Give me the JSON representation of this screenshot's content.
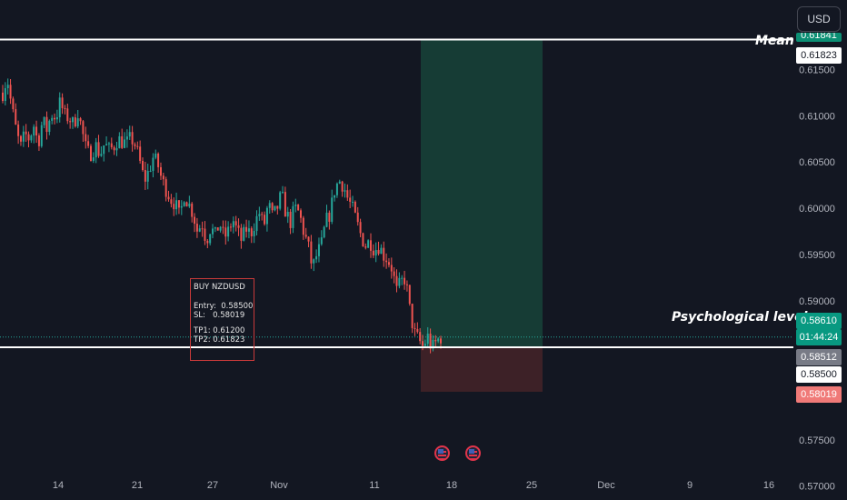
{
  "header": {
    "currency_label": "USD"
  },
  "note": {
    "title": "BUY NZDUSD",
    "entry": "Entry:  0.58500",
    "sl": "SL:   0.58019",
    "tp1": "TP1: 0.61200",
    "tp2": "TP2: 0.61823"
  },
  "levels": {
    "mean_label": "Mean",
    "psych_label": "Psychological level"
  },
  "price_tags": {
    "top_partial": "0.61841",
    "mean": "0.61823",
    "current": "0.58610",
    "countdown": "01:44:24",
    "gray": "0.58512",
    "entry": "0.58500",
    "sl": "0.58019"
  },
  "colors": {
    "background": "#131722",
    "up": "#26a69a",
    "down": "#ef5350",
    "profit_zone": "#163c35",
    "loss_zone": "#3d2127",
    "line": "#ffffff"
  },
  "chart_data": {
    "type": "candlestick",
    "symbol": "NZDUSD",
    "x_tick_labels": [
      "14",
      "21",
      "27",
      "Nov",
      "11",
      "18",
      "25",
      "Dec",
      "9",
      "16"
    ],
    "y_tick_labels": [
      "0.61500",
      "0.61000",
      "0.60500",
      "0.60000",
      "0.59500",
      "0.59000",
      "0.57500",
      "0.57000"
    ],
    "y_ticks": [
      0.615,
      0.61,
      0.605,
      0.6,
      0.595,
      0.59,
      0.575,
      0.57
    ],
    "ylim": [
      0.5685,
      0.6225
    ],
    "horizontal_lines": [
      {
        "label": "Mean",
        "value": 0.61823
      },
      {
        "label": "Psychological level",
        "value": 0.585
      }
    ],
    "position": {
      "side": "long",
      "entry": 0.585,
      "stop": 0.58019,
      "target": 0.61823
    },
    "close_path": [
      0.6125,
      0.6142,
      0.611,
      0.6085,
      0.6065,
      0.608,
      0.6075,
      0.609,
      0.607,
      0.6095,
      0.6085,
      0.6102,
      0.6098,
      0.6115,
      0.61,
      0.6098,
      0.609,
      0.6105,
      0.6082,
      0.606,
      0.606,
      0.6068,
      0.6058,
      0.607,
      0.6063,
      0.6066,
      0.6075,
      0.6072,
      0.607,
      0.6076,
      0.6068,
      0.605,
      0.603,
      0.604,
      0.6055,
      0.6048,
      0.603,
      0.602,
      0.601,
      0.6005,
      0.599,
      0.6015,
      0.6005,
      0.5995,
      0.5975,
      0.5985,
      0.5965,
      0.598,
      0.597,
      0.5985,
      0.5968,
      0.5975,
      0.5988,
      0.5975,
      0.5965,
      0.5978,
      0.5972,
      0.5985,
      0.5995,
      0.598,
      0.6005,
      0.599,
      0.6,
      0.6015,
      0.5995,
      0.5985,
      0.6,
      0.5995,
      0.5975,
      0.596,
      0.5935,
      0.595,
      0.596,
      0.5985,
      0.5995,
      0.602,
      0.603,
      0.6025,
      0.601,
      0.6,
      0.5985,
      0.597,
      0.596,
      0.5965,
      0.5955,
      0.596,
      0.595,
      0.5945,
      0.5935,
      0.591,
      0.592,
      0.5925,
      0.589,
      0.5865,
      0.5858,
      0.585,
      0.5862,
      0.5848,
      0.5856,
      0.5861
    ]
  }
}
